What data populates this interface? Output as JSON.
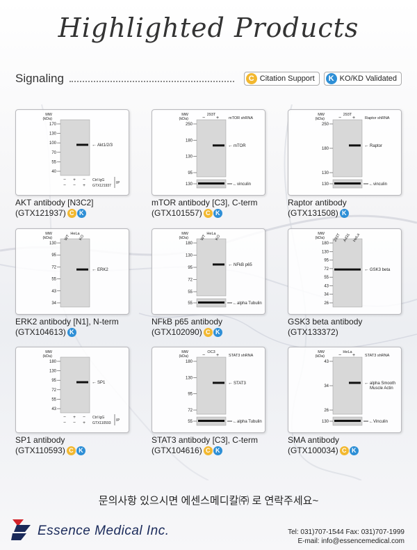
{
  "page": {
    "title": "Highlighted Products",
    "section": "Signaling",
    "badges": {
      "citation": "Citation Support",
      "ko": "KO/KD Validated"
    }
  },
  "products": [
    {
      "name": "AKT antibody [N3C2]",
      "catalog": "(GTX121937)",
      "icons": [
        "citation",
        "ko"
      ],
      "blot": {
        "mw_values": [
          "170",
          "130",
          "100",
          "70",
          "55",
          "40"
        ],
        "target": "Akt1/2/3",
        "lanes_rows": [
          {
            "signs": [
              "−",
              "+",
              "−"
            ],
            "label": "Ctrl IgG"
          },
          {
            "signs": [
              "−",
              "−",
              "+"
            ],
            "label": "GTX121937"
          }
        ],
        "ip": "IP"
      }
    },
    {
      "name": "mTOR antibody [C3], C-term",
      "catalog": "(GTX101557)",
      "icons": [
        "citation",
        "ko"
      ],
      "blot": {
        "cell": "293T",
        "lane_header": "mTOR shRNA",
        "mw_values": [
          "250",
          "180",
          "130",
          "95",
          "130"
        ],
        "target": "mTOR",
        "loading": "vinculin"
      }
    },
    {
      "name": "Raptor antibody",
      "catalog": "(GTX131508)",
      "icons": [
        "ko"
      ],
      "blot": {
        "cell": "293T",
        "lane_header": "Raptor shRNA",
        "mw_values": [
          "250",
          "180",
          "130",
          "130"
        ],
        "target": "Raptor",
        "loading": "vinculin"
      }
    },
    {
      "name": "ERK2 antibody [N1], N-term",
      "catalog": "(GTX104613)",
      "icons": [
        "ko"
      ],
      "blot": {
        "cell": "HeLa",
        "lanes": [
          "WT",
          "KO"
        ],
        "mw_values": [
          "130",
          "95",
          "72",
          "55",
          "43",
          "34"
        ],
        "target": "ERK2"
      }
    },
    {
      "name": "NFkB p65 antibody",
      "catalog": "(GTX102090)",
      "icons": [
        "citation",
        "ko"
      ],
      "blot": {
        "cell": "HeLa",
        "lanes": [
          "WT",
          "KO"
        ],
        "mw_values": [
          "180",
          "130",
          "95",
          "72",
          "55",
          "55"
        ],
        "target": "NFkB p65",
        "loading": "alpha Tubulin"
      }
    },
    {
      "name": "GSK3 beta antibody",
      "catalog": "(GTX133372)",
      "icons": [],
      "blot": {
        "lanes": [
          "293T",
          "A431",
          "HeLa"
        ],
        "mw_values": [
          "180",
          "130",
          "95",
          "72",
          "55",
          "43",
          "34",
          "26"
        ],
        "target": "GSK3 beta"
      }
    },
    {
      "name": "SP1 antibody",
      "catalog": "(GTX110593)",
      "icons": [
        "citation",
        "ko"
      ],
      "blot": {
        "mw_values": [
          "180",
          "130",
          "95",
          "72",
          "55",
          "43"
        ],
        "target": "SP1",
        "lanes_rows": [
          {
            "signs": [
              "−",
              "+",
              "−"
            ],
            "label": "Ctrl IgG"
          },
          {
            "signs": [
              "−",
              "−",
              "+"
            ],
            "label": "GTX110593"
          }
        ],
        "ip": "IP"
      }
    },
    {
      "name": "STAT3 antibody [C3], C-term",
      "catalog": "(GTX104616)",
      "icons": [
        "citation",
        "ko"
      ],
      "blot": {
        "cell": "OC3",
        "lane_header": "STAT3 shRNA",
        "mw_values": [
          "180",
          "130",
          "95",
          "72",
          "55"
        ],
        "target": "STAT3",
        "loading": "alpha Tubulin"
      }
    },
    {
      "name": "SMA antibody",
      "catalog": "(GTX100034)",
      "icons": [
        "citation",
        "ko"
      ],
      "blot": {
        "cell": "HeLa",
        "lane_header": "STAT3 shRNA",
        "mw_values": [
          "43",
          "34",
          "26",
          "130"
        ],
        "target": "alpha Smooth Muscle Actin",
        "loading": "Vinculin"
      }
    }
  ],
  "mw_label": "MW",
  "kda_label": "(kDa)",
  "sign_minus": "−",
  "sign_plus": "+",
  "footer": {
    "korean": "문의사항 있으시면 에센스메디칼㈜ 로 연락주세요~",
    "company": "Essence Medical Inc.",
    "tel": "Tel: 031)707-1544  Fax: 031)707-1999",
    "email": "E-mail: info@essencemedical.com"
  },
  "colors": {
    "citation": "#f2b830",
    "ko": "#2e8fd6",
    "logo_red": "#d2232a",
    "logo_blue": "#1a2a5a"
  }
}
